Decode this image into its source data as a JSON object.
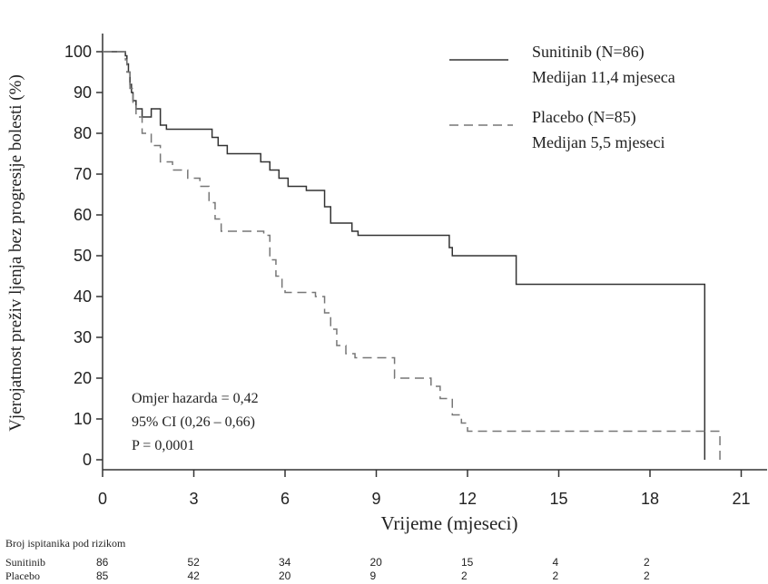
{
  "chart_data": {
    "type": "line",
    "ylabel": "Vjerojatnost preživ ljenja bez progresije bolesti (%)",
    "xlabel": "Vrijeme (mjeseci)",
    "xlim": [
      0,
      21
    ],
    "ylim": [
      0,
      100
    ],
    "xticks": [
      "0",
      "3",
      "6",
      "9",
      "12",
      "15",
      "18",
      "21"
    ],
    "yticks": [
      "0",
      "10",
      "20",
      "30",
      "40",
      "50",
      "60",
      "70",
      "80",
      "90",
      "100"
    ],
    "grid": false,
    "legend_position": "top-right",
    "series": [
      {
        "name": "Sunitinib (N=86)",
        "median_label": "Medijan 11,4 mjeseca",
        "style": "solid",
        "color": "#333333",
        "points": [
          [
            0,
            100
          ],
          [
            0.7,
            100
          ],
          [
            0.75,
            99
          ],
          [
            0.8,
            97
          ],
          [
            0.85,
            95
          ],
          [
            0.9,
            92
          ],
          [
            0.95,
            90
          ],
          [
            1.0,
            88
          ],
          [
            1.1,
            86
          ],
          [
            1.3,
            84
          ],
          [
            1.6,
            86
          ],
          [
            1.9,
            82
          ],
          [
            2.1,
            81
          ],
          [
            3.6,
            79
          ],
          [
            3.8,
            77
          ],
          [
            4.1,
            75
          ],
          [
            5.2,
            73
          ],
          [
            5.5,
            71
          ],
          [
            5.8,
            69
          ],
          [
            6.1,
            67
          ],
          [
            6.7,
            66
          ],
          [
            7.3,
            62
          ],
          [
            7.5,
            58
          ],
          [
            8.2,
            56
          ],
          [
            8.4,
            55
          ],
          [
            11.4,
            52
          ],
          [
            11.5,
            50
          ],
          [
            13.6,
            43
          ],
          [
            19.8,
            43
          ],
          [
            19.8,
            0
          ]
        ]
      },
      {
        "name": "Placebo (N=85)",
        "median_label": "Medijan 5,5 mjeseci",
        "style": "dashed",
        "color": "#777777",
        "points": [
          [
            0,
            100
          ],
          [
            0.7,
            100
          ],
          [
            0.75,
            98
          ],
          [
            0.8,
            95
          ],
          [
            0.9,
            91
          ],
          [
            1.0,
            87
          ],
          [
            1.1,
            84
          ],
          [
            1.3,
            80
          ],
          [
            1.6,
            77
          ],
          [
            1.9,
            73
          ],
          [
            2.3,
            71
          ],
          [
            2.8,
            69
          ],
          [
            3.2,
            67
          ],
          [
            3.5,
            63
          ],
          [
            3.7,
            59
          ],
          [
            3.9,
            56
          ],
          [
            5.3,
            55
          ],
          [
            5.5,
            49
          ],
          [
            5.7,
            45
          ],
          [
            5.9,
            42
          ],
          [
            6.0,
            41
          ],
          [
            7.0,
            40
          ],
          [
            7.3,
            36
          ],
          [
            7.5,
            32
          ],
          [
            7.7,
            28
          ],
          [
            8.0,
            26
          ],
          [
            8.3,
            25
          ],
          [
            9.6,
            20
          ],
          [
            10.8,
            18
          ],
          [
            11.1,
            15
          ],
          [
            11.5,
            11
          ],
          [
            11.8,
            9
          ],
          [
            12.0,
            7
          ],
          [
            20.3,
            7
          ],
          [
            20.3,
            0
          ]
        ]
      }
    ],
    "annotations": [
      "Omjer hazarda = 0,42",
      "95% CI (0,26 – 0,66)",
      "P = 0,0001"
    ]
  },
  "risk_table": {
    "title": "Broj ispitanika pod rizikom",
    "rows": [
      {
        "label": "Sunitinib",
        "values": [
          "86",
          "52",
          "34",
          "20",
          "15",
          "4",
          "2"
        ]
      },
      {
        "label": "Placebo",
        "values": [
          "85",
          "42",
          "20",
          "9",
          "2",
          "2",
          "2"
        ]
      }
    ]
  }
}
